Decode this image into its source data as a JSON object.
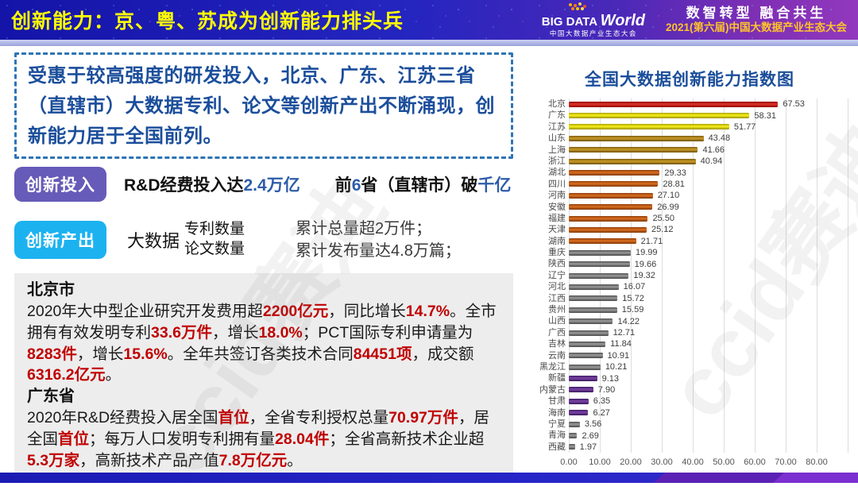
{
  "header": {
    "title": "创新能力：京、粤、苏成为创新能力排头兵",
    "logo": {
      "big": "BIG DATA ",
      "world": "World",
      "sub": "中国大数据产业生态大会"
    },
    "slogan": "数智转型 融合共生",
    "conference": "2021(第六届)中国大数据产业生态大会"
  },
  "intro": {
    "text": "受惠于较高强度的研发投入，北京、广东、江苏三省（直辖市）大数据专利、论文等创新产出不断涌现，创新能力居于全国前列。"
  },
  "rows": {
    "invest": {
      "badge": "创新投入",
      "phrase1": [
        {
          "t": "R&D经费投入达",
          "hl": false
        },
        {
          "t": "2.4万亿",
          "hl": true
        }
      ],
      "phrase2": [
        {
          "t": "前",
          "hl": false
        },
        {
          "t": "6",
          "hl": true
        },
        {
          "t": "省（直辖市）破",
          "hl": false
        },
        {
          "t": "千亿",
          "hl": true
        }
      ]
    },
    "output": {
      "badge": "创新产出",
      "prefix": "大数据",
      "stack1": [
        "专利数量",
        "论文数量"
      ],
      "stack2": [
        "累计总量超2万件；",
        "累计发布量达4.8万篇；"
      ]
    }
  },
  "regions": [
    {
      "name": "北京市",
      "segments": [
        {
          "t": "2020年大中型企业研究开发费用超",
          "hl": false
        },
        {
          "t": "2200亿元",
          "hl": true
        },
        {
          "t": "，同比增长",
          "hl": false
        },
        {
          "t": "14.7%",
          "hl": true
        },
        {
          "t": "。全市拥有有效发明专利",
          "hl": false
        },
        {
          "t": "33.6万件",
          "hl": true
        },
        {
          "t": "，增长",
          "hl": false
        },
        {
          "t": "18.0%",
          "hl": true
        },
        {
          "t": "；PCT国际专利申请量为",
          "hl": false
        },
        {
          "t": "8283件",
          "hl": true
        },
        {
          "t": "，增长",
          "hl": false
        },
        {
          "t": "15.6%",
          "hl": true
        },
        {
          "t": "。全年共签订各类技术合同",
          "hl": false
        },
        {
          "t": "84451项",
          "hl": true
        },
        {
          "t": "，成交额",
          "hl": false
        },
        {
          "t": "6316.2亿元",
          "hl": true
        },
        {
          "t": "。",
          "hl": false
        }
      ]
    },
    {
      "name": "广东省",
      "segments": [
        {
          "t": "2020年R&D经费投入居全国",
          "hl": false
        },
        {
          "t": "首位",
          "hl": true
        },
        {
          "t": "，全省专利授权总量",
          "hl": false
        },
        {
          "t": "70.97万件",
          "hl": true
        },
        {
          "t": "，居全国",
          "hl": false
        },
        {
          "t": "首位",
          "hl": true
        },
        {
          "t": "；每万人口发明专利拥有量",
          "hl": false
        },
        {
          "t": "28.04件",
          "hl": true
        },
        {
          "t": "；全省高新技术企业超",
          "hl": false
        },
        {
          "t": "5.3万家",
          "hl": true
        },
        {
          "t": "，高新技术产品产值",
          "hl": false
        },
        {
          "t": "7.8万亿元",
          "hl": true
        },
        {
          "t": "。",
          "hl": false
        }
      ]
    }
  ],
  "chart_data": {
    "type": "bar",
    "orientation": "horizontal",
    "title": "全国大数据创新能力指数图",
    "categories": [
      "北京",
      "广东",
      "江苏",
      "山东",
      "上海",
      "浙江",
      "湖北",
      "四川",
      "河南",
      "安徽",
      "福建",
      "天津",
      "湖南",
      "重庆",
      "陕西",
      "辽宁",
      "河北",
      "江西",
      "贵州",
      "山西",
      "广西",
      "吉林",
      "云南",
      "黑龙江",
      "新疆",
      "内蒙古",
      "甘肃",
      "海南",
      "宁夏",
      "青海",
      "西藏"
    ],
    "values": [
      67.53,
      58.31,
      51.77,
      43.48,
      41.66,
      40.94,
      29.33,
      28.81,
      27.1,
      26.99,
      25.5,
      25.12,
      21.71,
      19.99,
      19.66,
      19.32,
      16.07,
      15.72,
      15.59,
      14.22,
      12.71,
      11.84,
      10.91,
      10.21,
      9.13,
      7.9,
      6.35,
      6.27,
      3.56,
      2.69,
      1.97
    ],
    "groups": [
      "red",
      "yellow",
      "yellow",
      "gold",
      "gold",
      "gold",
      "orange",
      "orange",
      "orange",
      "orange",
      "orange",
      "orange",
      "orange",
      "gray",
      "gray",
      "gray",
      "gray",
      "gray",
      "gray",
      "gray",
      "gray",
      "gray",
      "gray",
      "gray",
      "purple",
      "purple",
      "purple",
      "purple",
      "gray",
      "gray",
      "gray"
    ],
    "group_colors": {
      "red": "#C00000",
      "yellow": "#F2E50C",
      "gold": "#B08318",
      "orange": "#C55A11",
      "gray": "#6E6E6E",
      "purple": "#5E2C85"
    },
    "value_labels": true,
    "xlim": [
      0,
      80
    ],
    "xticks": [
      "0.00",
      "10.00",
      "20.00",
      "30.00",
      "40.00",
      "50.00",
      "60.00",
      "70.00",
      "80.00"
    ],
    "grid": "vertical",
    "legend": "none"
  },
  "watermark": {
    "text": "ccid赛迪"
  }
}
